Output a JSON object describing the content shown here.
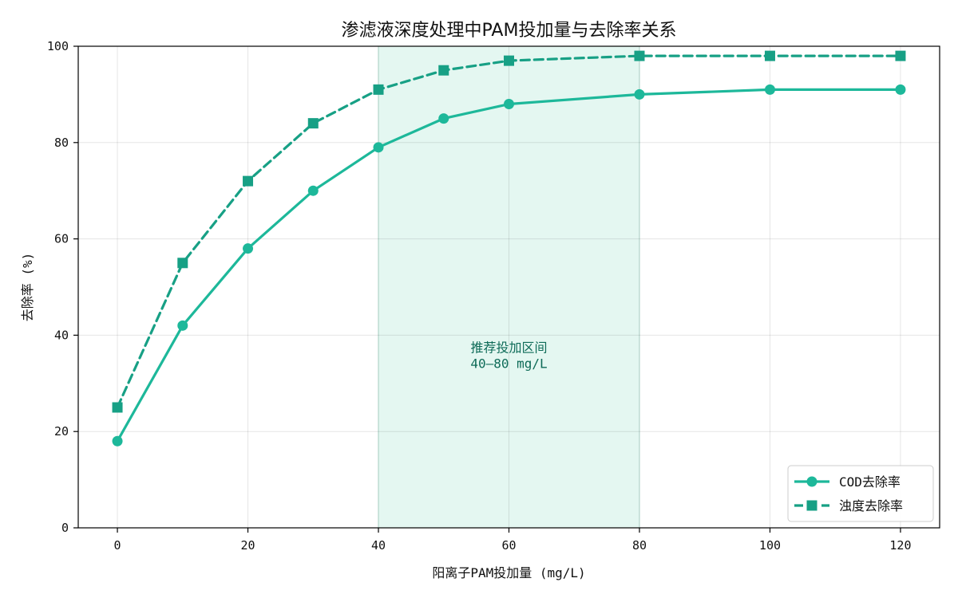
{
  "chart_data": {
    "type": "line",
    "title": "渗滤液深度处理中PAM投加量与去除率关系",
    "xlabel": "阳离子PAM投加量 (mg/L)",
    "ylabel": "去除率 (%)",
    "xlim": [
      -6,
      126
    ],
    "ylim": [
      0,
      100
    ],
    "xticks": [
      0,
      20,
      40,
      60,
      80,
      100,
      120
    ],
    "yticks": [
      0,
      20,
      40,
      60,
      80,
      100
    ],
    "grid": true,
    "legend_position": "lower-right",
    "x": [
      0,
      10,
      20,
      30,
      40,
      50,
      60,
      80,
      100,
      120
    ],
    "series": [
      {
        "name": "COD去除率",
        "values": [
          18,
          42,
          58,
          70,
          79,
          85,
          88,
          90,
          91,
          91
        ],
        "color": "#1db89a",
        "line_style": "solid",
        "marker": "circle"
      },
      {
        "name": "浊度去除率",
        "values": [
          25,
          55,
          72,
          84,
          91,
          95,
          97,
          98,
          98,
          98
        ],
        "color": "#17a085",
        "line_style": "dashed",
        "marker": "square"
      }
    ],
    "highlight_band": {
      "x_range": [
        40,
        80
      ],
      "color": "#d6f3ea",
      "label_line1": "推荐投加区间",
      "label_line2": "40–80 mg/L",
      "label_color": "#0e6b58",
      "label_y": 33
    }
  }
}
